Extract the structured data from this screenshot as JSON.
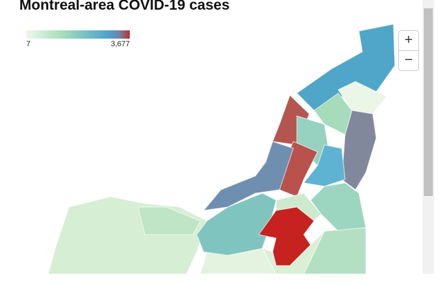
{
  "header": {
    "title": "Montreal-area COVID-19 cases"
  },
  "legend": {
    "min_label": "7",
    "max_label": "3,677"
  },
  "controls": {
    "zoom_in": "+",
    "zoom_out": "−"
  }
}
